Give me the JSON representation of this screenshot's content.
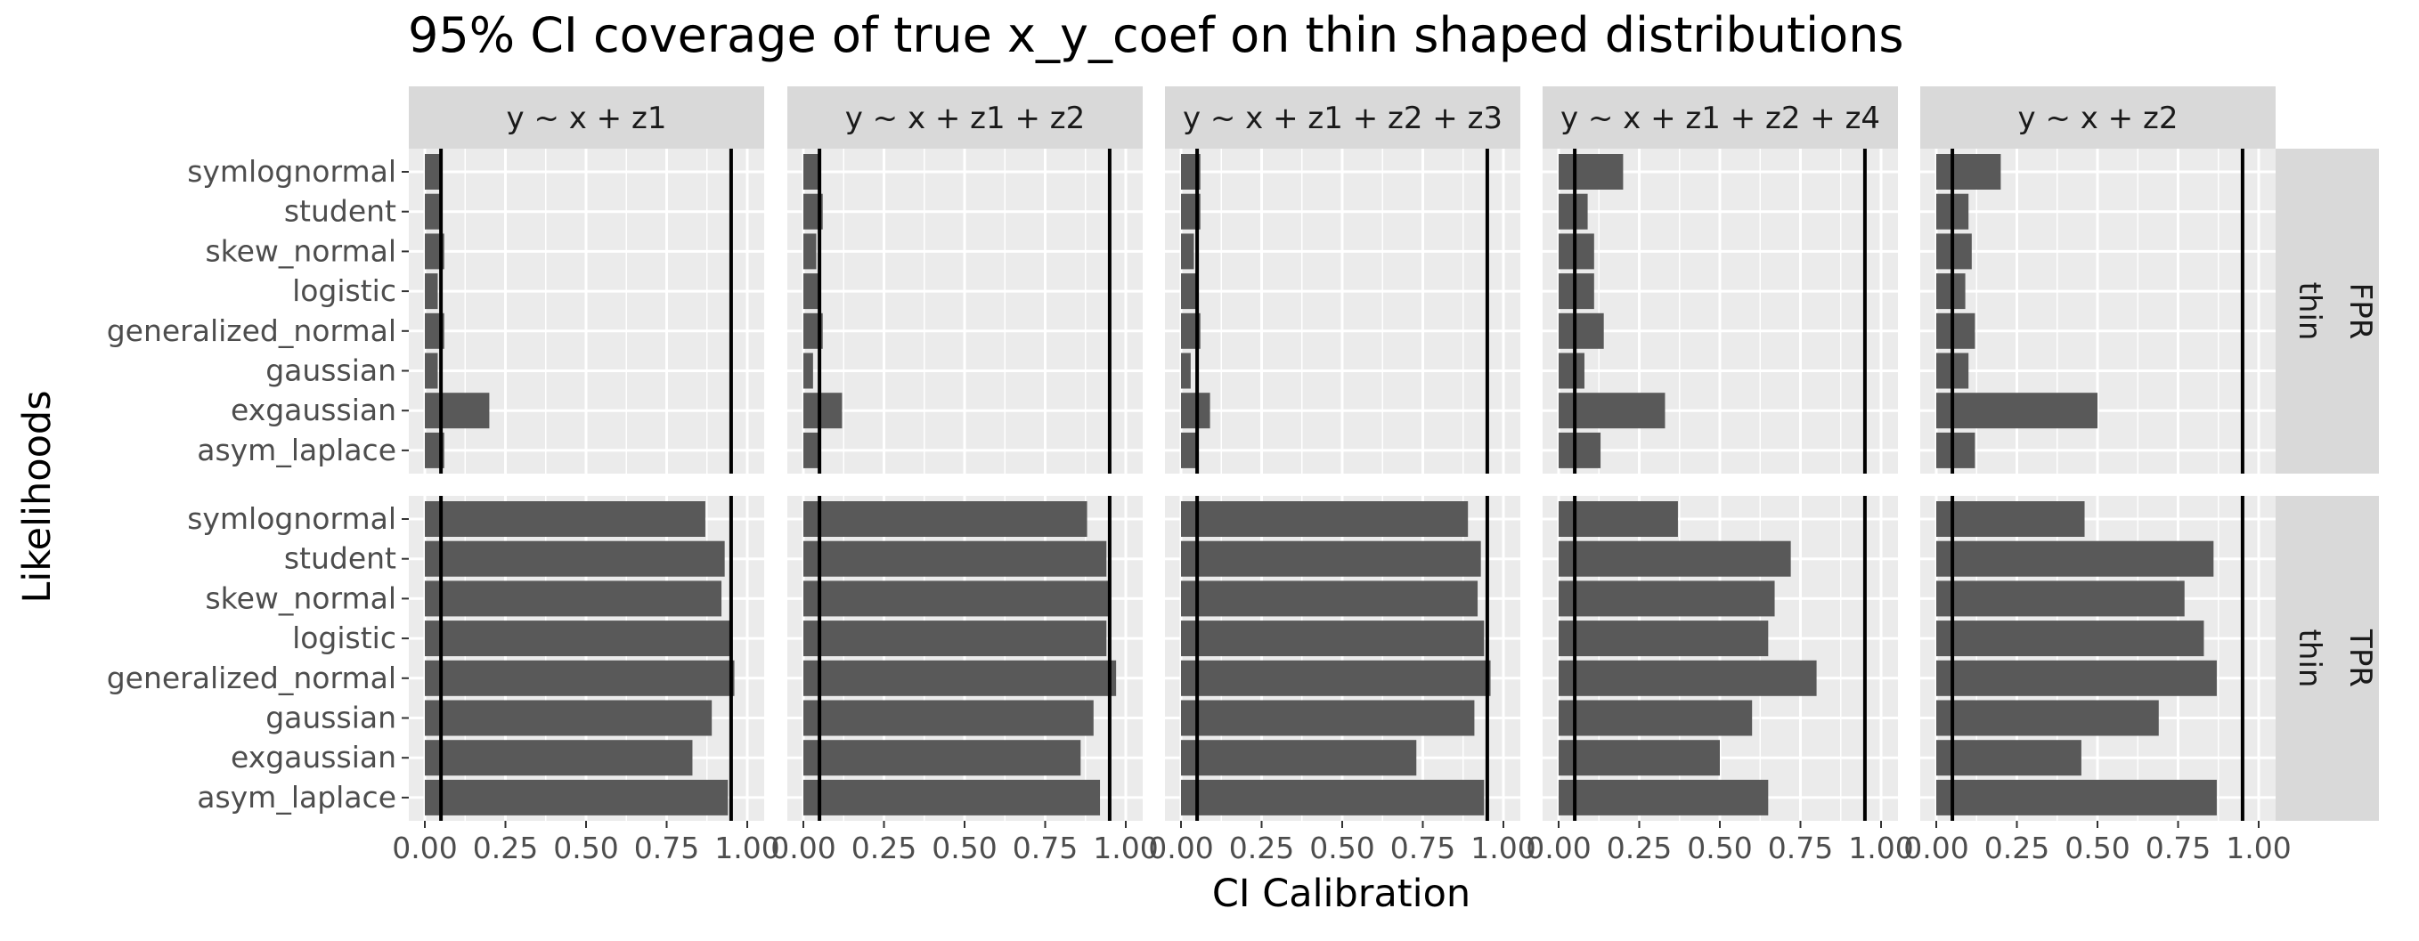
{
  "chart_data": {
    "type": "bar",
    "title": "95% CI coverage of true x_y_coef on thin shaped distributions",
    "xlabel": "CI Calibration",
    "ylabel": "Likelihoods",
    "xlim": [
      0,
      1
    ],
    "x_ticks": [
      "0.00",
      "0.25",
      "0.50",
      "0.75",
      "1.00"
    ],
    "categories": [
      "symlognormal",
      "student",
      "skew_normal",
      "logistic",
      "generalized_normal",
      "gaussian",
      "exgaussian",
      "asym_laplace"
    ],
    "reference_lines": [
      0.05,
      0.95
    ],
    "grid": true,
    "bar_color": "#595959",
    "panel_background": "#ebebeb",
    "strip_background": "#d9d9d9",
    "columns": [
      "y ~ x + z1",
      "y ~ x + z1 + z2",
      "y ~ x + z1 + z2 + z3",
      "y ~ x + z1 + z2 + z4",
      "y ~ x + z2"
    ],
    "rows": [
      {
        "metric": "FPR",
        "shape": "thin"
      },
      {
        "metric": "TPR",
        "shape": "thin"
      }
    ],
    "panels": [
      {
        "row": 0,
        "col": 0,
        "values": [
          0.05,
          0.05,
          0.06,
          0.04,
          0.06,
          0.04,
          0.2,
          0.06
        ]
      },
      {
        "row": 0,
        "col": 1,
        "values": [
          0.05,
          0.06,
          0.04,
          0.05,
          0.06,
          0.03,
          0.12,
          0.05
        ]
      },
      {
        "row": 0,
        "col": 2,
        "values": [
          0.06,
          0.06,
          0.04,
          0.05,
          0.06,
          0.03,
          0.09,
          0.05
        ]
      },
      {
        "row": 0,
        "col": 3,
        "values": [
          0.2,
          0.09,
          0.11,
          0.11,
          0.14,
          0.08,
          0.33,
          0.13
        ]
      },
      {
        "row": 0,
        "col": 4,
        "values": [
          0.2,
          0.1,
          0.11,
          0.09,
          0.12,
          0.1,
          0.5,
          0.12
        ]
      },
      {
        "row": 1,
        "col": 0,
        "values": [
          0.87,
          0.93,
          0.92,
          0.95,
          0.96,
          0.89,
          0.83,
          0.94
        ]
      },
      {
        "row": 1,
        "col": 1,
        "values": [
          0.88,
          0.94,
          0.95,
          0.94,
          0.97,
          0.9,
          0.86,
          0.92
        ]
      },
      {
        "row": 1,
        "col": 2,
        "values": [
          0.89,
          0.93,
          0.92,
          0.94,
          0.96,
          0.91,
          0.73,
          0.94
        ]
      },
      {
        "row": 1,
        "col": 3,
        "values": [
          0.37,
          0.72,
          0.67,
          0.65,
          0.8,
          0.6,
          0.5,
          0.65
        ]
      },
      {
        "row": 1,
        "col": 4,
        "values": [
          0.46,
          0.86,
          0.77,
          0.83,
          0.87,
          0.69,
          0.45,
          0.87
        ]
      }
    ]
  }
}
